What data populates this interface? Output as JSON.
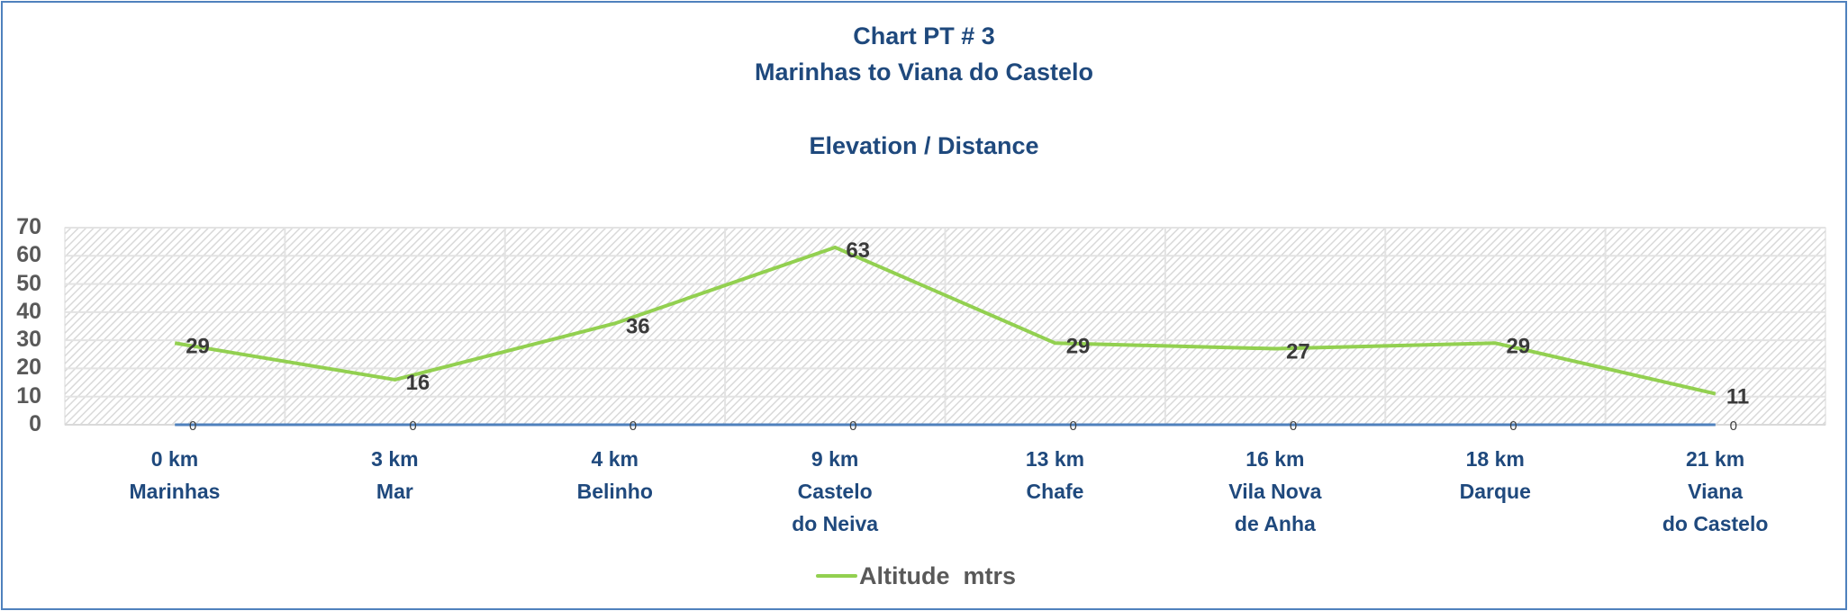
{
  "chart": {
    "title_line1": "Chart  PT # 3",
    "title_line2": "Marinhas to Viana do Castelo",
    "subtitle": "Elevation / Distance",
    "y_ticks": [
      "70",
      "60",
      "50",
      "40",
      "30",
      "20",
      "10",
      "0"
    ],
    "categories": [
      {
        "km": "0 km",
        "place": [
          "Marinhas"
        ]
      },
      {
        "km": "3 km",
        "place": [
          "Mar"
        ]
      },
      {
        "km": "4 km",
        "place": [
          "Belinho"
        ]
      },
      {
        "km": "9 km",
        "place": [
          "Castelo",
          "do Neiva"
        ]
      },
      {
        "km": "13 km",
        "place": [
          "Chafe"
        ]
      },
      {
        "km": "16 km",
        "place": [
          "Vila Nova",
          "de Anha"
        ]
      },
      {
        "km": "18 km",
        "place": [
          "Darque"
        ]
      },
      {
        "km": "21 km",
        "place": [
          "Viana",
          "do Castelo"
        ]
      }
    ],
    "legend": {
      "label": "Altitude  mtrs"
    },
    "colors": {
      "altitude_line": "#92d050",
      "baseline_series": "#4f81bd",
      "title": "#1f497d",
      "axis_text": "#595959",
      "frame": "#4f81bd"
    }
  },
  "chart_data": {
    "type": "line",
    "title": "Chart  PT # 3 / Marinhas to Viana do Castelo / Elevation / Distance",
    "categories": [
      "0 km Marinhas",
      "3 km Mar",
      "4 km Belinho",
      "9 km Castelo do Neiva",
      "13 km Chafe",
      "16 km Vila Nova de Anha",
      "18 km Darque",
      "21 km Viana do Castelo"
    ],
    "series": [
      {
        "name": "Altitude  mtrs",
        "values": [
          29,
          16,
          36,
          63,
          29,
          27,
          29,
          11
        ],
        "color": "#92d050"
      },
      {
        "name": "(unlabeled baseline)",
        "values": [
          0,
          0,
          0,
          0,
          0,
          0,
          0,
          0
        ],
        "color": "#4f81bd"
      }
    ],
    "xlabel": "",
    "ylabel": "",
    "ylim": [
      0,
      70
    ],
    "yticks": [
      0,
      10,
      20,
      30,
      40,
      50,
      60,
      70
    ],
    "grid": true,
    "legend_position": "bottom",
    "data_labels": true
  }
}
